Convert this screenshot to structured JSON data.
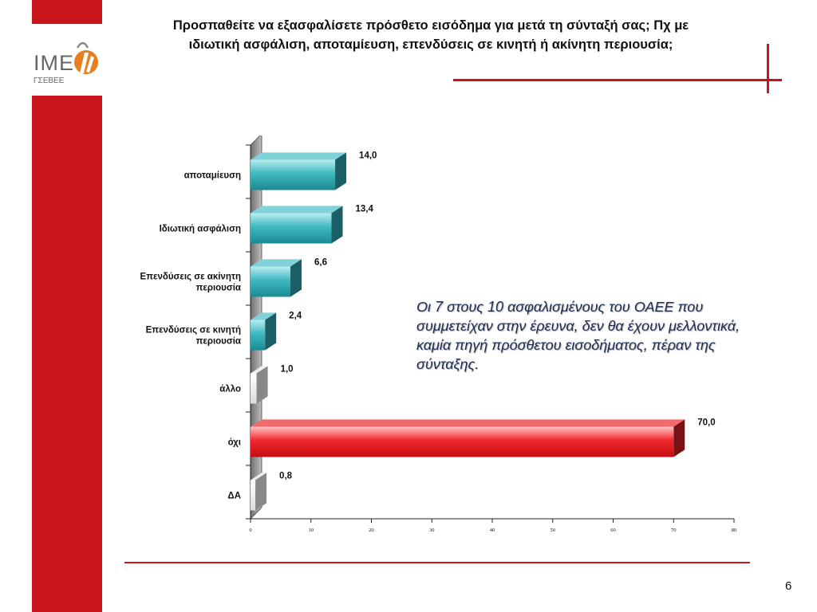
{
  "slide": {
    "title_line1": "Προσπαθείτε να εξασφαλίσετε πρόσθετο εισόδημα για μετά τη σύνταξή σας; Πχ με",
    "title_line2": "ιδιωτική ασφάλιση, αποταμίευση, επενδύσεις σε κινητή ή ακίνητη περιουσία;",
    "annotation": "Οι 7 στους 10 ασφαλισμένους του ΟΑΕΕ που συμμετείχαν στην έρευνα, δεν θα έχουν μελλοντικά, καμία πηγή πρόσθετου εισοδήματος, πέραν της σύνταξης.",
    "page_number": "6"
  },
  "logo": {
    "line1": "IME",
    "line2": "ΓΣΕΒΕΕ"
  },
  "colors": {
    "accent_red": "#c8141b",
    "bar_teal": "#2aa6ad",
    "bar_red": "#e8141b",
    "bar_white": "#f4f4f4"
  },
  "chart_data": {
    "type": "bar",
    "orientation": "horizontal",
    "categories": [
      [
        "αποταμίευση"
      ],
      [
        "Ιδιωτική ασφάλιση"
      ],
      [
        "Επενδύσεις σε ακίνητη",
        "περιουσία"
      ],
      [
        "Επενδύσεις σε κινητή",
        "περιουσία"
      ],
      [
        "άλλο"
      ],
      [
        "όχι"
      ],
      [
        "ΔΑ"
      ]
    ],
    "values": [
      14.0,
      13.4,
      6.6,
      2.4,
      1.0,
      70.0,
      0.8
    ],
    "value_labels": [
      "14,0",
      "13,4",
      "6,6",
      "2,4",
      "1,0",
      "70,0",
      "0,8"
    ],
    "bar_styles": [
      "teal",
      "teal",
      "teal",
      "teal",
      "white",
      "red",
      "white"
    ],
    "xlim": [
      0,
      80
    ],
    "xticks": [
      0,
      10,
      20,
      30,
      40,
      50,
      60,
      70,
      80
    ],
    "grid": false,
    "legend": "none"
  }
}
